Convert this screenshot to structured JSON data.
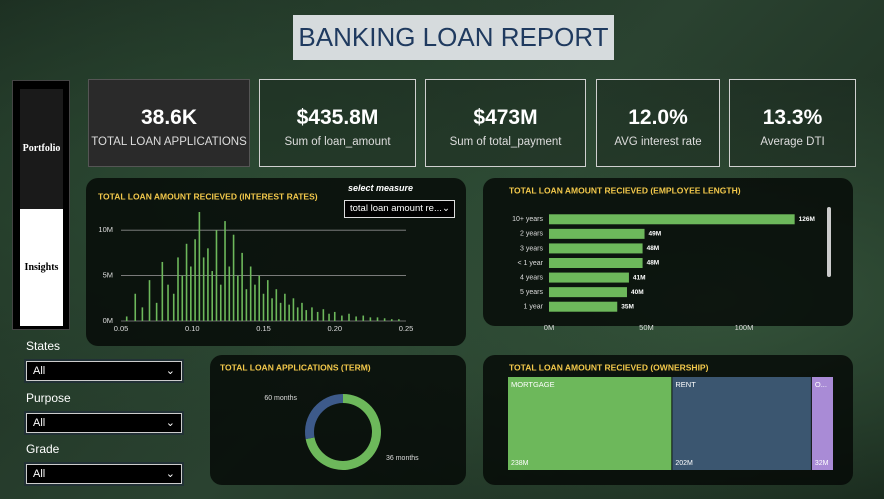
{
  "header": {
    "title": "BANKING LOAN REPORT"
  },
  "nav": {
    "items": [
      "Portfolio",
      "Insights"
    ]
  },
  "kpis": [
    {
      "value": "38.6K",
      "label": "TOTAL LOAN APPLICATIONS"
    },
    {
      "value": "$435.8M",
      "label": "Sum of loan_amount"
    },
    {
      "value": "$473M",
      "label": "Sum of total_payment"
    },
    {
      "value": "12.0%",
      "label": "AVG interest rate"
    },
    {
      "value": "13.3%",
      "label": "Average DTI"
    }
  ],
  "filters": [
    {
      "label": "States",
      "value": "All"
    },
    {
      "label": "Purpose",
      "value": "All"
    },
    {
      "label": "Grade",
      "value": "All"
    }
  ],
  "chart_data": [
    {
      "type": "bar",
      "title": "TOTAL LOAN AMOUNT RECIEVED (INTEREST RATES)",
      "measure_label": "select measure",
      "measure_value": "total loan amount re...",
      "color": "#6db85b",
      "grid": true,
      "x": [
        0.054,
        0.06,
        0.065,
        0.07,
        0.075,
        0.079,
        0.083,
        0.087,
        0.09,
        0.093,
        0.096,
        0.099,
        0.102,
        0.105,
        0.108,
        0.111,
        0.114,
        0.117,
        0.12,
        0.123,
        0.126,
        0.129,
        0.132,
        0.135,
        0.138,
        0.141,
        0.144,
        0.147,
        0.15,
        0.153,
        0.156,
        0.159,
        0.162,
        0.165,
        0.168,
        0.171,
        0.174,
        0.177,
        0.18,
        0.184,
        0.188,
        0.192,
        0.196,
        0.2,
        0.205,
        0.21,
        0.215,
        0.22,
        0.225,
        0.23,
        0.235,
        0.24,
        0.245
      ],
      "values": [
        500000,
        3000000,
        1500000,
        4500000,
        2000000,
        6500000,
        4000000,
        3000000,
        7000000,
        5000000,
        8500000,
        6000000,
        9000000,
        12000000,
        7000000,
        8000000,
        5500000,
        10000000,
        4000000,
        11000000,
        6000000,
        9500000,
        5000000,
        7500000,
        3500000,
        6000000,
        4000000,
        5000000,
        3000000,
        4500000,
        2500000,
        3500000,
        2000000,
        3000000,
        1800000,
        2500000,
        1500000,
        2000000,
        1200000,
        1500000,
        1000000,
        1300000,
        800000,
        1000000,
        600000,
        800000,
        500000,
        600000,
        400000,
        400000,
        300000,
        200000,
        200000
      ],
      "xlim": [
        0.05,
        0.25
      ],
      "xticks": [
        0.05,
        {
          "value": 0.1,
          "label": "0.10"
        },
        0.15,
        {
          "value": 0.2,
          "label": "0.20"
        },
        0.25
      ],
      "ylim": [
        0,
        12000000
      ],
      "yticks": [
        {
          "value": 0,
          "label": "0M"
        },
        {
          "value": 5000000,
          "label": "5M"
        },
        {
          "value": 10000000,
          "label": "10M"
        }
      ]
    },
    {
      "type": "bar",
      "orientation": "horizontal",
      "title": "TOTAL LOAN AMOUNT RECIEVED (EMPLOYEE LENGTH)",
      "color": "#6db85b",
      "categories": [
        "10+ years",
        "2 years",
        "3 years",
        "< 1 year",
        "4 years",
        "5 years",
        "1 year"
      ],
      "values": [
        126000000,
        49000000,
        48000000,
        48000000,
        41000000,
        40000000,
        35000000
      ],
      "value_labels": [
        "126M",
        "49M",
        "48M",
        "48M",
        "41M",
        "40M",
        "35M"
      ],
      "xlim": [
        0,
        139000000
      ],
      "xticks": [
        {
          "value": 0,
          "label": "0M"
        },
        {
          "value": 50000000,
          "label": "50M"
        },
        {
          "value": 100000000,
          "label": "100M"
        }
      ]
    },
    {
      "type": "donut",
      "title": "TOTAL LOAN APPLICATIONS (TERM)",
      "categories": [
        "36 months",
        "60 months"
      ],
      "values": [
        72,
        28
      ],
      "colors": [
        "#6db85b",
        "#3d5a8a"
      ]
    },
    {
      "type": "treemap",
      "title": "TOTAL LOAN AMOUNT RECIEVED (OWNERSHIP)",
      "categories": [
        "MORTGAGE",
        "RENT",
        "O..."
      ],
      "values": [
        238000000,
        202000000,
        32000000
      ],
      "value_labels": [
        "238M",
        "202M",
        "32M"
      ],
      "colors": [
        "#6db85b",
        "#3b5670",
        "#a98bd6"
      ]
    }
  ]
}
